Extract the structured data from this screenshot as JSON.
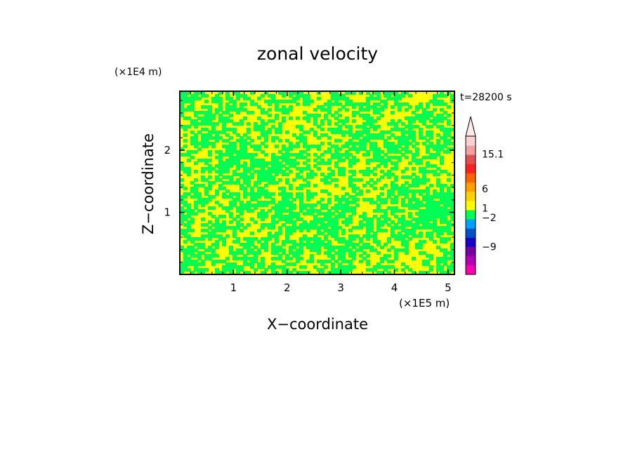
{
  "chart_data": {
    "type": "heatmap",
    "title": "zonal velocity",
    "xlabel": "X−coordinate",
    "ylabel": "Z−coordinate",
    "x_scale_label": "(×1E5 m)",
    "y_scale_label": "(×1E4 m)",
    "time_label": "t=28200 s",
    "xlim": [
      0,
      5.12
    ],
    "ylim": [
      0,
      2.95
    ],
    "x_ticks": [
      1,
      2,
      3,
      4,
      5
    ],
    "x_tick_labels": [
      "1",
      "2",
      "3",
      "4",
      "5"
    ],
    "y_ticks": [
      1,
      2
    ],
    "y_tick_labels": [
      "1",
      "2"
    ],
    "field_colors": {
      "positive_low": "#ffff00",
      "near_zero": "#00ff55"
    },
    "colorbar": {
      "levels": [
        {
          "color": "#ff00b0"
        },
        {
          "color": "#b400b4"
        },
        {
          "color": "#7800a0"
        },
        {
          "color": "#1a00c8"
        },
        {
          "color": "#0050c8"
        },
        {
          "color": "#00a0ff"
        },
        {
          "color": "#00ff55"
        },
        {
          "color": "#ffff00"
        },
        {
          "color": "#ffd200"
        },
        {
          "color": "#ffa000"
        },
        {
          "color": "#ff6400"
        },
        {
          "color": "#ff2020"
        },
        {
          "color": "#e05050"
        },
        {
          "color": "#f0a0a0"
        },
        {
          "color": "#ffd0d0"
        }
      ],
      "labels": [
        {
          "text": "15.1",
          "frac": 0.87
        },
        {
          "text": "6",
          "frac": 0.62
        },
        {
          "text": "1",
          "frac": 0.48
        },
        {
          "text": "−2",
          "frac": 0.41
        },
        {
          "text": "−9",
          "frac": 0.2
        }
      ]
    }
  }
}
